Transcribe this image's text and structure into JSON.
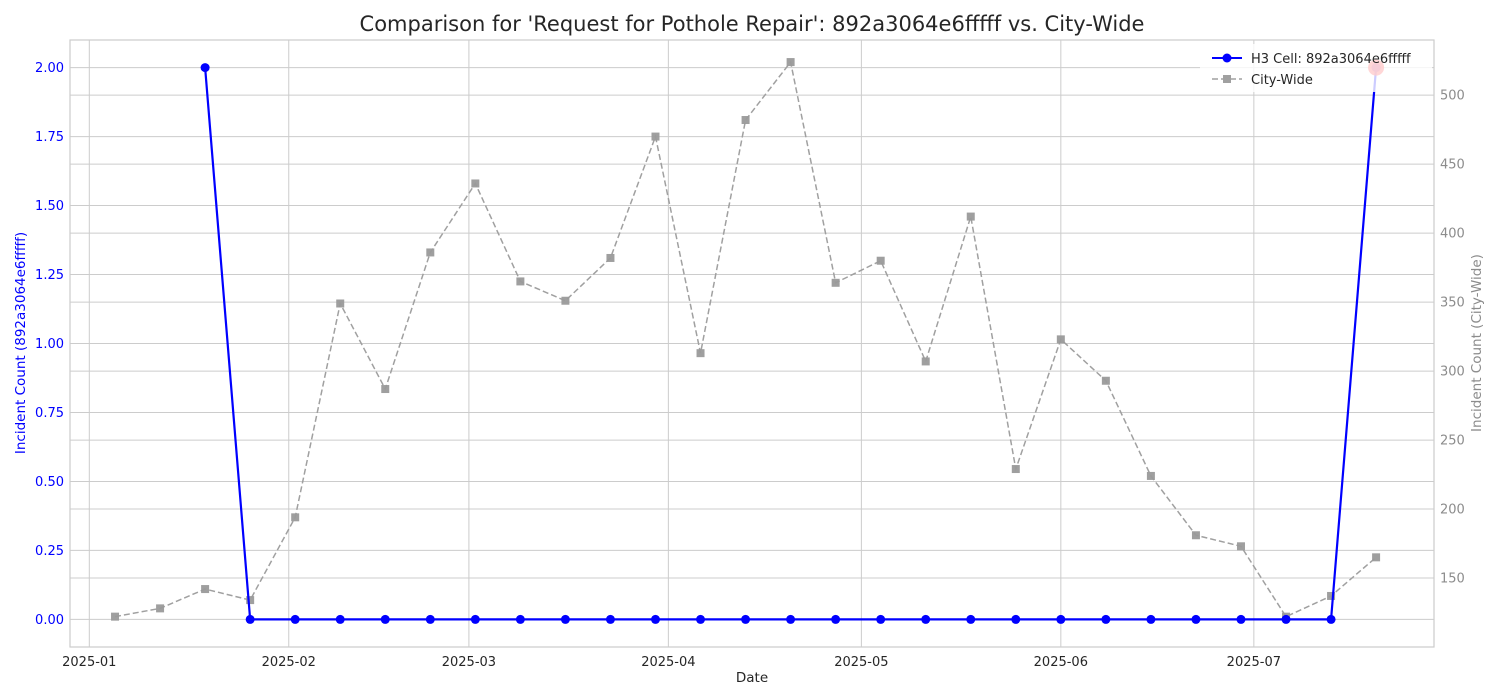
{
  "chart_data": {
    "type": "line",
    "title": "Comparison for 'Request for Pothole Repair': 892a3064e6fffff vs. City-Wide",
    "xlabel": "Date",
    "ylabel_left": "Incident Count (892a3064e6fffff)",
    "ylabel_right": "Incident Count (City-Wide)",
    "x_ticks": [
      "2025-01",
      "2025-02",
      "2025-03",
      "2025-04",
      "2025-05",
      "2025-06",
      "2025-07"
    ],
    "y_left_ticks": [
      "0.00",
      "0.25",
      "0.50",
      "0.75",
      "1.00",
      "1.25",
      "1.50",
      "1.75",
      "2.00"
    ],
    "y_right_ticks": [
      "150",
      "200",
      "250",
      "300",
      "350",
      "400",
      "450",
      "500"
    ],
    "xlim": [
      "2024-12-29",
      "2025-07-29"
    ],
    "ylim_left": [
      -0.1,
      2.1
    ],
    "ylim_right": [
      100,
      540
    ],
    "grid": true,
    "legend_position": "top-right",
    "series": [
      {
        "name": "H3 Cell: 892a3064e6fffff",
        "axis": "left",
        "color": "#0000ff",
        "style": "solid",
        "marker": "circle",
        "x": [
          "2025-01-19",
          "2025-01-26",
          "2025-02-02",
          "2025-02-09",
          "2025-02-16",
          "2025-02-23",
          "2025-03-02",
          "2025-03-09",
          "2025-03-16",
          "2025-03-23",
          "2025-03-30",
          "2025-04-06",
          "2025-04-13",
          "2025-04-20",
          "2025-04-27",
          "2025-05-04",
          "2025-05-11",
          "2025-05-18",
          "2025-05-25",
          "2025-06-01",
          "2025-06-08",
          "2025-06-15",
          "2025-06-22",
          "2025-06-29",
          "2025-07-06",
          "2025-07-13",
          "2025-07-20"
        ],
        "values": [
          2,
          0,
          0,
          0,
          0,
          0,
          0,
          0,
          0,
          0,
          0,
          0,
          0,
          0,
          0,
          0,
          0,
          0,
          0,
          0,
          0,
          0,
          0,
          0,
          0,
          0,
          2
        ]
      },
      {
        "name": "City-Wide",
        "axis": "right",
        "color": "#a0a0a0",
        "style": "dashed",
        "marker": "square",
        "x": [
          "2025-01-05",
          "2025-01-12",
          "2025-01-19",
          "2025-01-26",
          "2025-02-02",
          "2025-02-09",
          "2025-02-16",
          "2025-02-23",
          "2025-03-02",
          "2025-03-09",
          "2025-03-16",
          "2025-03-23",
          "2025-03-30",
          "2025-04-06",
          "2025-04-13",
          "2025-04-20",
          "2025-04-27",
          "2025-05-04",
          "2025-05-11",
          "2025-05-18",
          "2025-05-25",
          "2025-06-01",
          "2025-06-08",
          "2025-06-15",
          "2025-06-22",
          "2025-06-29",
          "2025-07-06",
          "2025-07-13",
          "2025-07-20"
        ],
        "values": [
          122,
          128,
          142,
          134,
          194,
          349,
          287,
          386,
          436,
          365,
          351,
          382,
          470,
          313,
          482,
          524,
          364,
          380,
          307,
          412,
          229,
          323,
          293,
          224,
          181,
          173,
          122,
          137,
          165
        ]
      }
    ],
    "highlight": {
      "x": "2025-07-20",
      "value": 2,
      "axis": "left",
      "color": "#ff0000"
    }
  }
}
